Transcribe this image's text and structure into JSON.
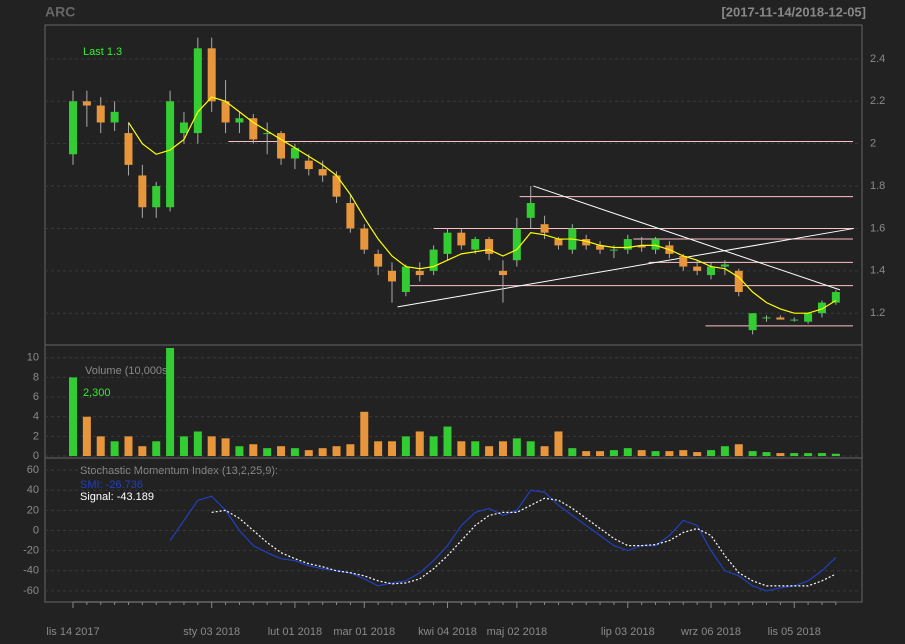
{
  "chart_data": {
    "type": "candlestick",
    "title": "ARC",
    "subtitle": "[2017-11-14/2018-12-05]",
    "categories": [
      "lis 14 2017",
      null,
      null,
      null,
      null,
      null,
      null,
      null,
      null,
      null,
      "sty 03 2018",
      null,
      null,
      null,
      null,
      null,
      "lut 01 2018",
      null,
      null,
      null,
      null,
      "mar 01 2018",
      null,
      null,
      null,
      null,
      null,
      "kwi 04 2018",
      null,
      null,
      null,
      null,
      "maj 02 2018",
      null,
      null,
      null,
      null,
      null,
      null,
      null,
      "lip 03 2018",
      null,
      null,
      null,
      null,
      null,
      "wrz 06 2018",
      null,
      null,
      null,
      null,
      null,
      "lis 05 2018",
      null,
      null,
      null
    ],
    "open": [
      1.95,
      2.2,
      2.18,
      2.1,
      2.05,
      1.85,
      1.7,
      1.7,
      2.05,
      2.05,
      2.45,
      2.2,
      2.1,
      2.12,
      2.05,
      2.05,
      1.93,
      1.92,
      1.88,
      1.85,
      1.72,
      1.6,
      1.48,
      1.4,
      1.3,
      1.4,
      1.4,
      1.48,
      1.58,
      1.5,
      1.55,
      1.4,
      1.45,
      1.65,
      1.62,
      1.55,
      1.5,
      1.55,
      1.52,
      1.5,
      1.5,
      1.52,
      1.5,
      1.52,
      1.47,
      1.42,
      1.38,
      1.42,
      1.4,
      1.12,
      1.18,
      1.18,
      1.17,
      1.16,
      1.2,
      1.25
    ],
    "high": [
      2.25,
      2.25,
      2.22,
      2.2,
      2.1,
      1.9,
      1.82,
      2.25,
      2.15,
      2.5,
      2.5,
      2.3,
      2.15,
      2.14,
      2.1,
      2.06,
      2.0,
      1.95,
      1.92,
      1.87,
      1.76,
      1.62,
      1.5,
      1.44,
      1.43,
      1.44,
      1.52,
      1.6,
      1.6,
      1.56,
      1.56,
      1.45,
      1.65,
      1.8,
      1.66,
      1.56,
      1.62,
      1.57,
      1.54,
      1.52,
      1.57,
      1.56,
      1.56,
      1.54,
      1.48,
      1.45,
      1.44,
      1.45,
      1.41,
      1.2,
      1.19,
      1.19,
      1.18,
      1.2,
      1.26,
      1.31
    ],
    "low": [
      1.9,
      2.08,
      2.05,
      2.06,
      1.85,
      1.65,
      1.65,
      1.68,
      2.0,
      2.0,
      2.15,
      2.05,
      2.05,
      2.0,
      1.95,
      1.9,
      1.88,
      1.85,
      1.82,
      1.72,
      1.58,
      1.48,
      1.38,
      1.25,
      1.28,
      1.35,
      1.38,
      1.45,
      1.5,
      1.48,
      1.45,
      1.25,
      1.42,
      1.6,
      1.55,
      1.5,
      1.48,
      1.5,
      1.48,
      1.46,
      1.48,
      1.49,
      1.48,
      1.46,
      1.4,
      1.38,
      1.36,
      1.38,
      1.28,
      1.1,
      1.16,
      1.17,
      1.16,
      1.15,
      1.18,
      1.24
    ],
    "close": [
      2.2,
      2.18,
      2.1,
      2.15,
      1.9,
      1.7,
      1.8,
      2.2,
      2.1,
      2.45,
      2.2,
      2.1,
      2.12,
      2.02,
      2.05,
      1.93,
      1.98,
      1.88,
      1.85,
      1.75,
      1.6,
      1.5,
      1.42,
      1.35,
      1.42,
      1.38,
      1.5,
      1.58,
      1.52,
      1.55,
      1.48,
      1.38,
      1.6,
      1.72,
      1.58,
      1.52,
      1.6,
      1.52,
      1.5,
      1.5,
      1.55,
      1.51,
      1.55,
      1.48,
      1.42,
      1.4,
      1.42,
      1.43,
      1.3,
      1.2,
      1.18,
      1.17,
      1.17,
      1.2,
      1.25,
      1.3
    ],
    "sma": [
      null,
      null,
      null,
      null,
      2.1,
      2.0,
      1.95,
      1.97,
      2.02,
      2.15,
      2.22,
      2.2,
      2.15,
      2.1,
      2.06,
      2.02,
      1.98,
      1.94,
      1.9,
      1.85,
      1.76,
      1.65,
      1.55,
      1.47,
      1.42,
      1.41,
      1.42,
      1.45,
      1.48,
      1.49,
      1.5,
      1.47,
      1.5,
      1.58,
      1.57,
      1.55,
      1.55,
      1.54,
      1.52,
      1.51,
      1.51,
      1.52,
      1.52,
      1.5,
      1.47,
      1.45,
      1.42,
      1.41,
      1.37,
      1.3,
      1.25,
      1.22,
      1.2,
      1.2,
      1.22,
      1.26
    ],
    "up_color": "#33cc33",
    "down_color": "#e8963c",
    "sma_color": "#ffff00",
    "ylim": [
      1.05,
      2.56
    ],
    "yticks": [
      1.2,
      1.4,
      1.6,
      1.8,
      2.0,
      2.2,
      2.4
    ],
    "levels": [
      {
        "value": 2.01,
        "from": 11.2
      },
      {
        "value": 1.75,
        "from": 32.2
      },
      {
        "value": 1.6,
        "from": 26
      },
      {
        "value": 1.55,
        "from": 40.4
      },
      {
        "value": 1.44,
        "from": 41.5
      },
      {
        "value": 1.33,
        "from": 24.3
      },
      {
        "value": 1.14,
        "from": 45.6
      }
    ],
    "level_color": "#ffc0cb",
    "trendlines": [
      {
        "x": [
          23.4,
          56.3
        ],
        "y": [
          1.23,
          1.6
        ]
      },
      {
        "x": [
          33.2,
          55.3
        ],
        "y": [
          1.8,
          1.31
        ]
      }
    ],
    "last_label": "Last 1.3",
    "volume": {
      "title": "Volume (10,000s):",
      "last_label": "2,300",
      "values": [
        8,
        4,
        2,
        1.5,
        2,
        1,
        1.5,
        11,
        2,
        2.5,
        2,
        1.8,
        1,
        1.2,
        0.8,
        1,
        0.8,
        0.6,
        0.8,
        1,
        1.2,
        4.5,
        1.5,
        1.5,
        2,
        2.5,
        2,
        3,
        1.5,
        1.5,
        1,
        1.5,
        1.8,
        1.5,
        1,
        2.5,
        0.8,
        0.5,
        0.5,
        0.6,
        0.8,
        0.6,
        0.5,
        0.5,
        0.6,
        0.4,
        0.6,
        1,
        1.2,
        0.5,
        0.4,
        0.3,
        0.3,
        0.3,
        0.3,
        0.23
      ],
      "ylim": [
        -0.2,
        11.3
      ],
      "yticks": [
        0,
        2,
        4,
        6,
        8,
        10
      ]
    },
    "smi": {
      "title": "Stochastic Momentum Index (13,2,25,9):",
      "smi_label": "SMI: -26.736",
      "signal_label": "Signal: -43.189",
      "smi_color": "#2040c0",
      "signal_color": "#ffffff",
      "smi": [
        null,
        null,
        null,
        null,
        null,
        null,
        null,
        -10,
        10,
        30,
        34,
        20,
        0,
        -15,
        -22,
        -28,
        -30,
        -35,
        -38,
        -40,
        -42,
        -48,
        -55,
        -52,
        -50,
        -42,
        -30,
        -15,
        5,
        18,
        22,
        15,
        20,
        40,
        38,
        25,
        15,
        5,
        -5,
        -15,
        -20,
        -15,
        -15,
        -5,
        10,
        5,
        -20,
        -40,
        -45,
        -55,
        -60,
        -57,
        -55,
        -50,
        -40,
        -26.736
      ],
      "signal": [
        null,
        null,
        null,
        null,
        null,
        null,
        null,
        null,
        null,
        null,
        18,
        20,
        12,
        0,
        -12,
        -22,
        -28,
        -33,
        -36,
        -40,
        -42,
        -45,
        -50,
        -53,
        -52,
        -48,
        -38,
        -25,
        -10,
        5,
        15,
        18,
        18,
        25,
        32,
        30,
        22,
        12,
        2,
        -8,
        -15,
        -15,
        -14,
        -10,
        -2,
        2,
        -5,
        -25,
        -42,
        -50,
        -55,
        -55,
        -55,
        -55,
        -50,
        -43.189
      ],
      "ylim": [
        -71,
        72
      ],
      "yticks": [
        -60,
        -40,
        -20,
        0,
        20,
        40,
        60
      ]
    }
  }
}
